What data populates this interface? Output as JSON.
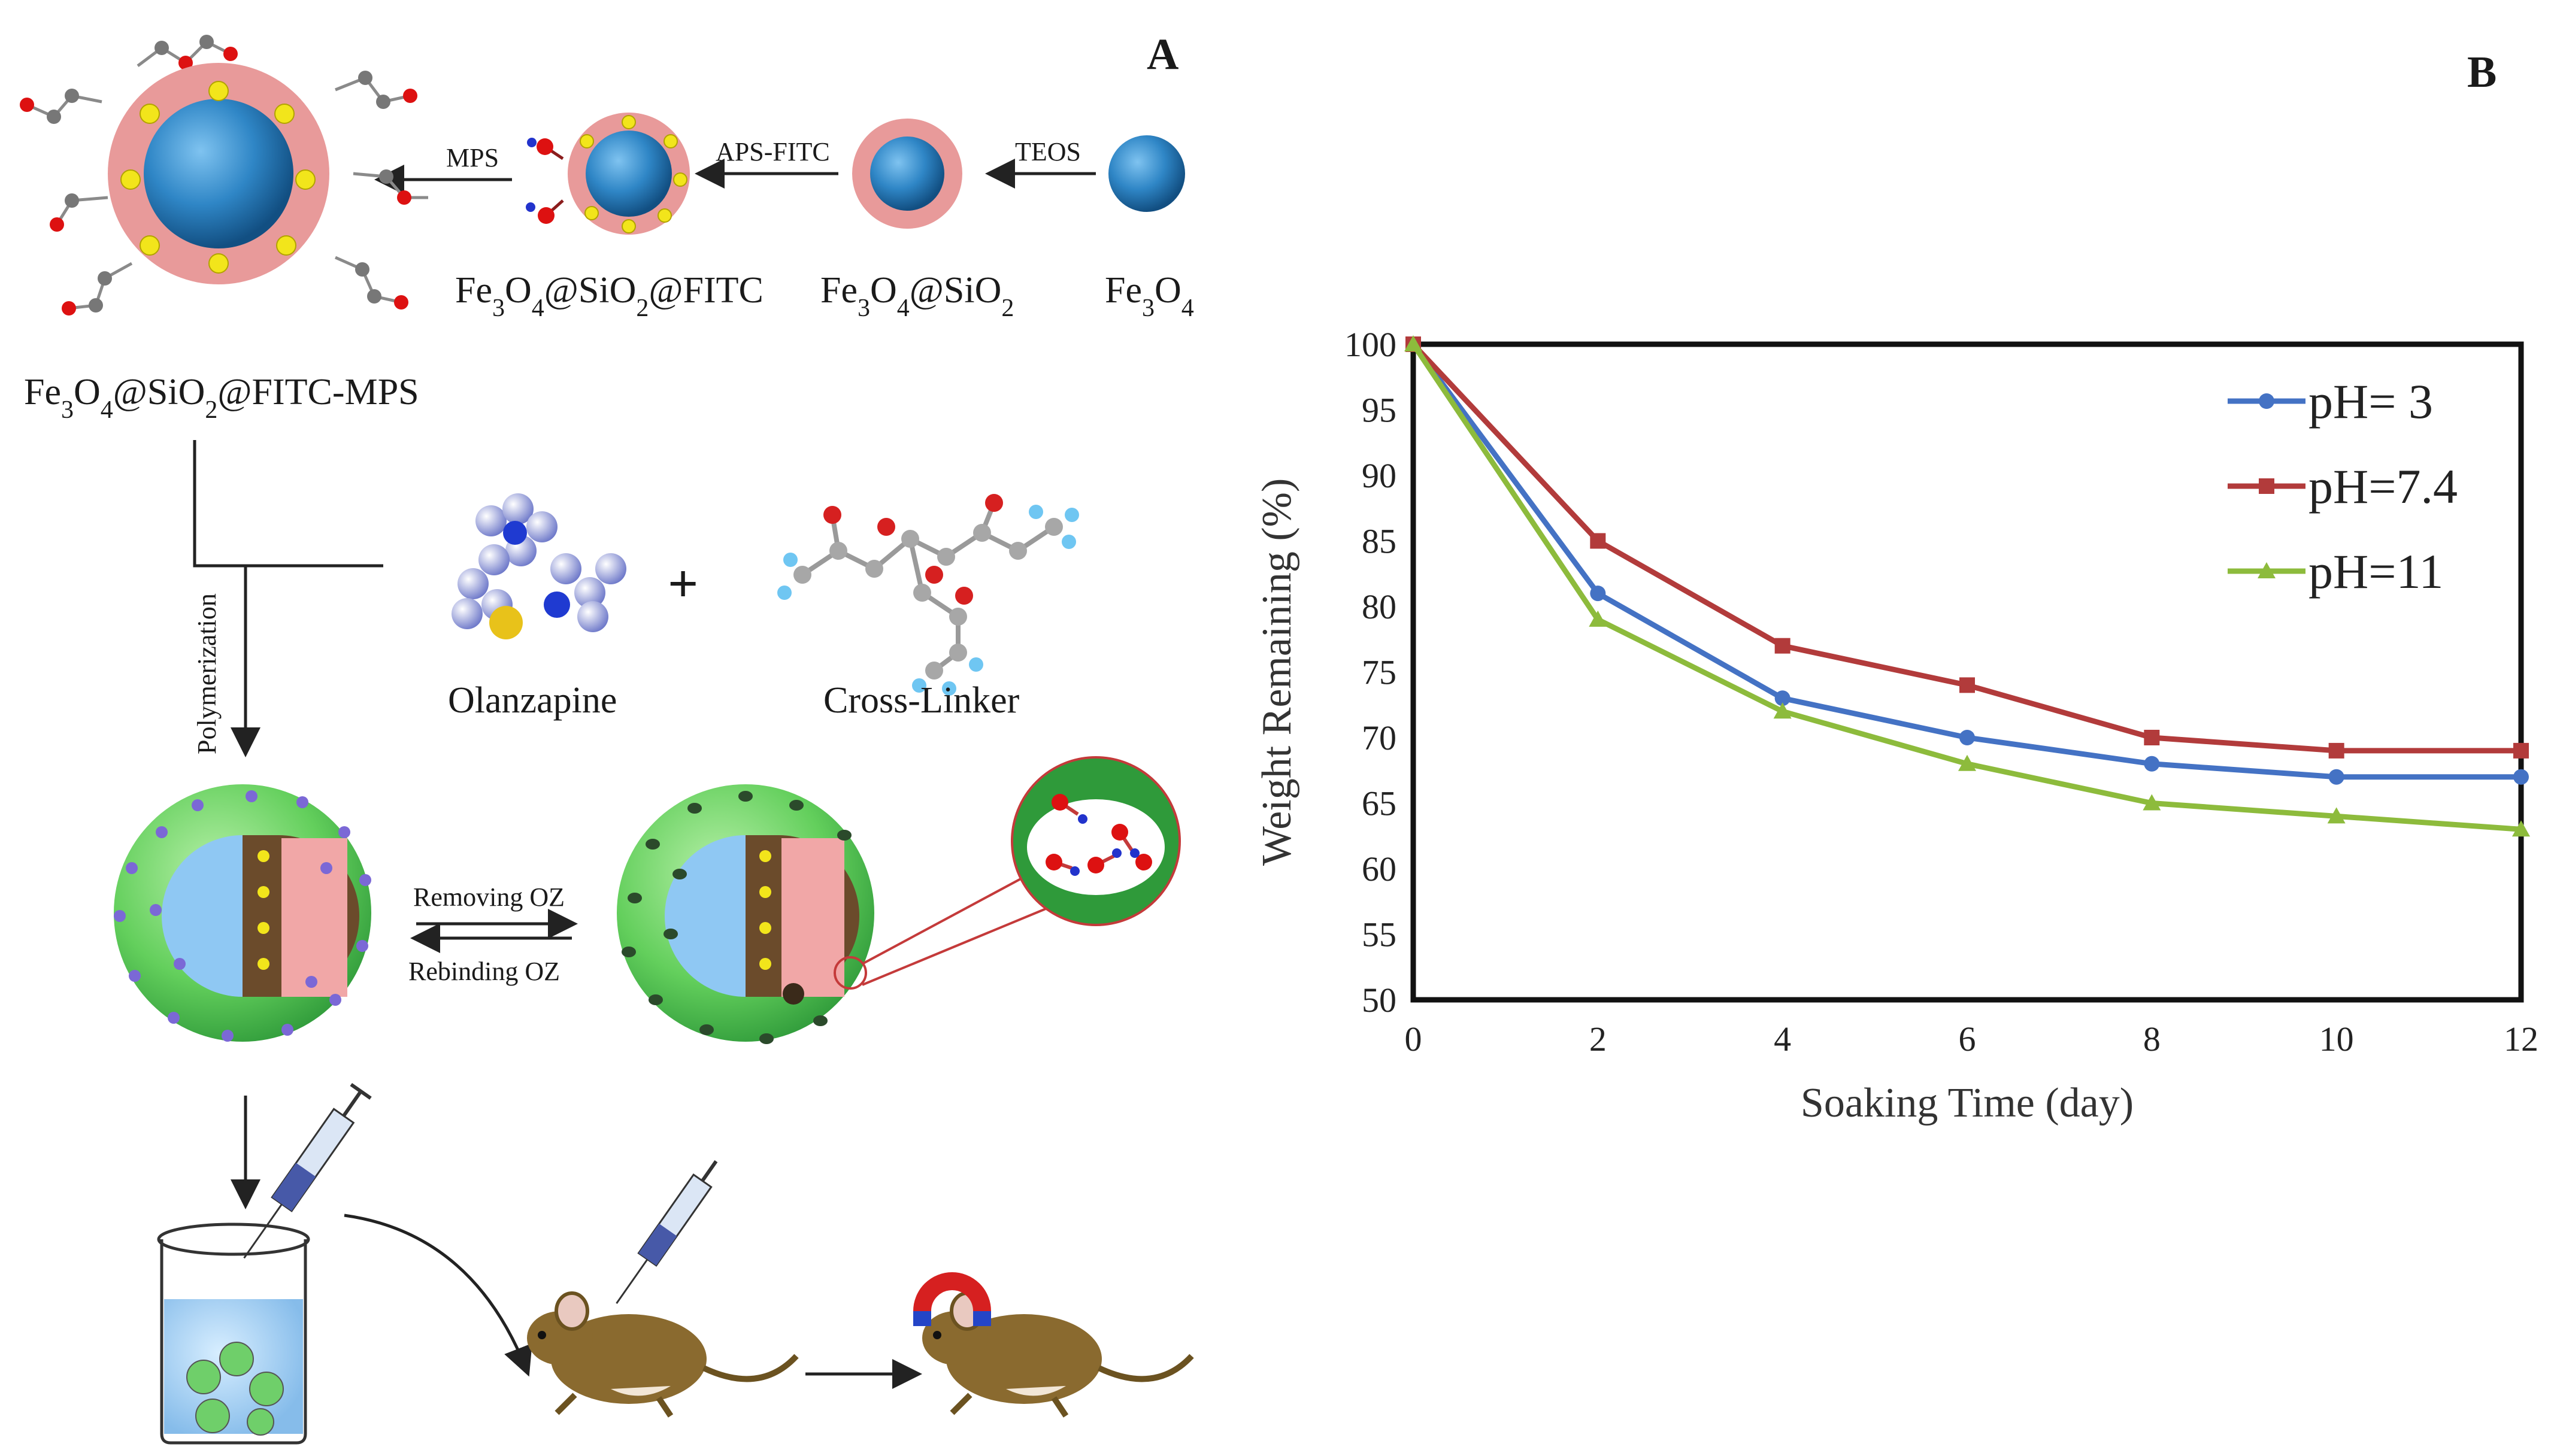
{
  "panel_a": {
    "label": "A",
    "steps": {
      "teos": "TEOS",
      "aps_fitc": "APS-FITC",
      "mps": "MPS",
      "polymerization": "Polymerization",
      "removing": "Removing OZ",
      "rebinding": "Rebinding OZ"
    },
    "compounds": {
      "fe3o4": "Fe3O4",
      "fe3o4_sio2": "Fe3O4@SiO2",
      "fe3o4_sio2_fitc": "Fe3O4@SiO2@FITC",
      "fe3o4_sio2_fitc_mps": "Fe3O4@SiO2@FITC-MPS",
      "olanzapine": "Olanzapine",
      "plus": "+",
      "cross_linker": "Cross-Linker"
    },
    "colors": {
      "core": "#2f86c6",
      "shell": "#e79a9a",
      "dot": "#f2e51b",
      "polymer": "#6fd56a",
      "fur": "#8a6a2f"
    },
    "icons": [
      "syringe-icon",
      "beaker-icon",
      "mouse-icon",
      "magnet-icon"
    ]
  },
  "panel_b": {
    "label": "B",
    "chart_data": {
      "type": "line",
      "xlabel": "Soaking Time (day)",
      "ylabel": "Weight Remaining (%)",
      "xlim": [
        0,
        12
      ],
      "ylim": [
        50,
        100
      ],
      "xticks": [
        0,
        2,
        4,
        6,
        8,
        10,
        12
      ],
      "yticks": [
        50,
        55,
        60,
        65,
        70,
        75,
        80,
        85,
        90,
        95,
        100
      ],
      "grid": false,
      "legend_position": "top-right",
      "series": [
        {
          "name": "pH= 3",
          "color": "#4472c4",
          "marker": "circle",
          "x": [
            0,
            2,
            4,
            6,
            8,
            10,
            12
          ],
          "y": [
            100,
            81,
            73,
            70,
            68,
            67,
            67
          ]
        },
        {
          "name": "pH=7.4",
          "color": "#b23b3b",
          "marker": "square",
          "x": [
            0,
            2,
            4,
            6,
            8,
            10,
            12
          ],
          "y": [
            100,
            85,
            77,
            74,
            70,
            69,
            69
          ]
        },
        {
          "name": "pH=11",
          "color": "#8dbb3c",
          "marker": "triangle",
          "x": [
            0,
            2,
            4,
            6,
            8,
            10,
            12
          ],
          "y": [
            100,
            79,
            72,
            68,
            65,
            64,
            63
          ]
        }
      ]
    }
  }
}
